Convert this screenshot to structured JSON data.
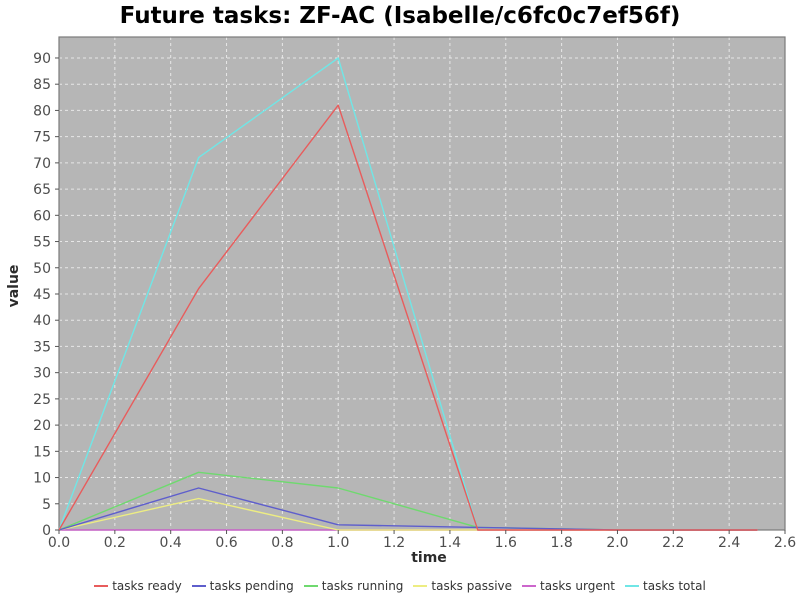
{
  "title": "Future tasks: ZF-AC (Isabelle/c6fc0c7ef56f)",
  "styles": {
    "plot_bg": "#b6b6b6",
    "plot_border": "#7a7a7a",
    "gridline": "#f4f4f4",
    "tick_mark_color": "#555555",
    "tick_label_color": "#4d4d4d",
    "axis_title_color": "#2b2b2b",
    "title_color": "#000000",
    "legend_text_color": "#333333"
  },
  "chart_data": {
    "type": "line",
    "title": "Future tasks: ZF-AC (Isabelle/c6fc0c7ef56f)",
    "xlabel": "time",
    "ylabel": "value",
    "xlim": [
      0,
      2.6
    ],
    "ylim": [
      0,
      94
    ],
    "grid": true,
    "legend_position": "bottom",
    "x_ticks": [
      {
        "v": 0.0,
        "label": "0.0"
      },
      {
        "v": 0.2,
        "label": "0.2"
      },
      {
        "v": 0.4,
        "label": "0.4"
      },
      {
        "v": 0.6,
        "label": "0.6"
      },
      {
        "v": 0.8,
        "label": "0.8"
      },
      {
        "v": 1.0,
        "label": "1.0"
      },
      {
        "v": 1.2,
        "label": "1.2"
      },
      {
        "v": 1.4,
        "label": "1.4"
      },
      {
        "v": 1.6,
        "label": "1.6"
      },
      {
        "v": 1.8,
        "label": "1.8"
      },
      {
        "v": 2.0,
        "label": "2.0"
      },
      {
        "v": 2.2,
        "label": "2.2"
      },
      {
        "v": 2.4,
        "label": "2.4"
      },
      {
        "v": 2.6,
        "label": "2.6"
      }
    ],
    "y_ticks": [
      0,
      5,
      10,
      15,
      20,
      25,
      30,
      35,
      40,
      45,
      50,
      55,
      60,
      65,
      70,
      75,
      80,
      85,
      90
    ],
    "x": [
      0,
      0.5,
      1.0,
      1.5,
      2.0,
      2.5
    ],
    "series": [
      {
        "name": "tasks ready",
        "color": "#e85c5c",
        "values": [
          0,
          46,
          81,
          0,
          0,
          0
        ]
      },
      {
        "name": "tasks pending",
        "color": "#5e5ecc",
        "values": [
          0,
          8,
          1,
          0.5,
          0,
          0
        ]
      },
      {
        "name": "tasks running",
        "color": "#6fd96f",
        "values": [
          0,
          11,
          8,
          0.5,
          0,
          0
        ]
      },
      {
        "name": "tasks passive",
        "color": "#eded82",
        "values": [
          0,
          6,
          0,
          0,
          0,
          0
        ]
      },
      {
        "name": "tasks urgent",
        "color": "#cc66cc",
        "values": [
          0,
          0,
          0,
          0,
          0,
          0
        ]
      },
      {
        "name": "tasks total",
        "color": "#70e6e6",
        "values": [
          0,
          71,
          90,
          0,
          0,
          0
        ]
      }
    ],
    "draw_order": [
      "tasks total",
      "tasks urgent",
      "tasks passive",
      "tasks running",
      "tasks pending",
      "tasks ready"
    ]
  }
}
